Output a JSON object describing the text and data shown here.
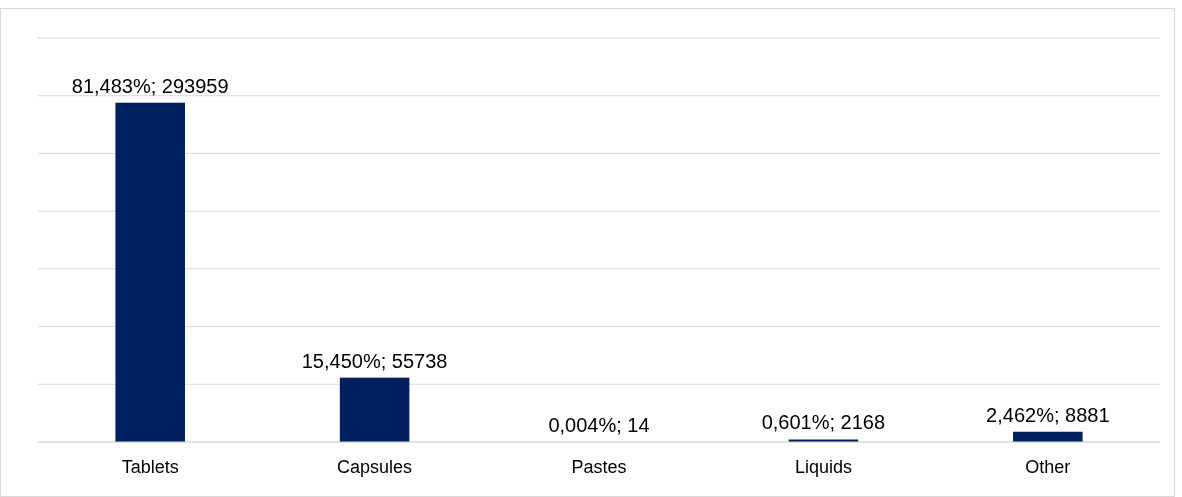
{
  "chart_data": {
    "type": "bar",
    "categories": [
      "Tablets",
      "Capsules",
      "Pastes",
      "Liquids",
      "Other"
    ],
    "values": [
      293959,
      55738,
      14,
      2168,
      8881
    ],
    "value_labels": [
      "81,483%; 293959",
      "15,450%; 55738",
      "0,004%; 14",
      "0,601%; 2168",
      "2,462%; 8881"
    ],
    "color": "#002060",
    "ylim": [
      0,
      350000
    ],
    "yticks": [
      {
        "value": 0,
        "label": null
      },
      {
        "value": 50000,
        "label": null
      },
      {
        "value": 100000,
        "label": null
      },
      {
        "value": 150000,
        "label": null
      },
      {
        "value": 200000,
        "label": null
      },
      {
        "value": 250000,
        "label": null
      },
      {
        "value": 300000,
        "label": null
      },
      {
        "value": 350000,
        "label": null
      }
    ],
    "grid": "y",
    "tick_labels": "x"
  }
}
